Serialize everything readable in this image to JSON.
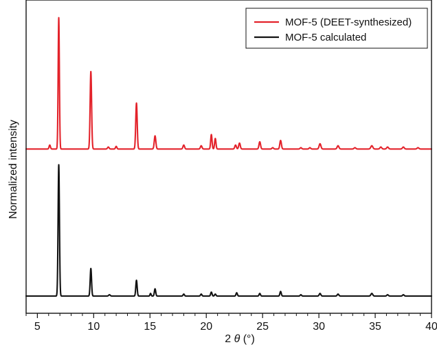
{
  "chart_data": {
    "type": "line",
    "title": "",
    "xlabel": {
      "prefix": "2",
      "symbol": "θ",
      "unit": "(°)"
    },
    "ylabel": "Normalized intensity",
    "xlim": [
      4,
      40
    ],
    "ylim": [
      0,
      2.15
    ],
    "xticks": [
      5,
      10,
      15,
      20,
      25,
      30,
      35,
      40
    ],
    "grid": false,
    "legend_position": "top-right",
    "series": [
      {
        "name": "MOF-5 (DEET-synthesized)",
        "color": "#e3222a",
        "offset": 1.12,
        "baseline": 0.0,
        "peaks": [
          {
            "x": 6.1,
            "y": 0.03,
            "w": 0.06
          },
          {
            "x": 6.9,
            "y": 1.0,
            "w": 0.055
          },
          {
            "x": 9.75,
            "y": 0.59,
            "w": 0.065
          },
          {
            "x": 11.3,
            "y": 0.015,
            "w": 0.07
          },
          {
            "x": 12.0,
            "y": 0.02,
            "w": 0.06
          },
          {
            "x": 13.8,
            "y": 0.35,
            "w": 0.065
          },
          {
            "x": 15.45,
            "y": 0.1,
            "w": 0.07
          },
          {
            "x": 18.0,
            "y": 0.03,
            "w": 0.07
          },
          {
            "x": 19.55,
            "y": 0.025,
            "w": 0.07
          },
          {
            "x": 20.45,
            "y": 0.11,
            "w": 0.06
          },
          {
            "x": 20.8,
            "y": 0.08,
            "w": 0.06
          },
          {
            "x": 22.6,
            "y": 0.03,
            "w": 0.07
          },
          {
            "x": 22.95,
            "y": 0.045,
            "w": 0.07
          },
          {
            "x": 24.75,
            "y": 0.055,
            "w": 0.07
          },
          {
            "x": 25.9,
            "y": 0.01,
            "w": 0.07
          },
          {
            "x": 26.6,
            "y": 0.065,
            "w": 0.07
          },
          {
            "x": 28.4,
            "y": 0.01,
            "w": 0.07
          },
          {
            "x": 29.2,
            "y": 0.01,
            "w": 0.07
          },
          {
            "x": 30.1,
            "y": 0.04,
            "w": 0.08
          },
          {
            "x": 31.7,
            "y": 0.025,
            "w": 0.08
          },
          {
            "x": 33.2,
            "y": 0.01,
            "w": 0.08
          },
          {
            "x": 34.7,
            "y": 0.025,
            "w": 0.09
          },
          {
            "x": 35.5,
            "y": 0.015,
            "w": 0.08
          },
          {
            "x": 36.1,
            "y": 0.015,
            "w": 0.08
          },
          {
            "x": 37.5,
            "y": 0.015,
            "w": 0.08
          },
          {
            "x": 38.8,
            "y": 0.01,
            "w": 0.08
          }
        ]
      },
      {
        "name": "MOF-5 calculated",
        "color": "#111111",
        "offset": 0.0,
        "baseline": 0.0,
        "peaks": [
          {
            "x": 6.9,
            "y": 1.0,
            "w": 0.06
          },
          {
            "x": 9.75,
            "y": 0.21,
            "w": 0.06
          },
          {
            "x": 11.4,
            "y": 0.01,
            "w": 0.07
          },
          {
            "x": 13.8,
            "y": 0.12,
            "w": 0.06
          },
          {
            "x": 15.45,
            "y": 0.055,
            "w": 0.06
          },
          {
            "x": 15.05,
            "y": 0.02,
            "w": 0.05
          },
          {
            "x": 18.0,
            "y": 0.015,
            "w": 0.06
          },
          {
            "x": 19.55,
            "y": 0.015,
            "w": 0.06
          },
          {
            "x": 20.45,
            "y": 0.03,
            "w": 0.06
          },
          {
            "x": 20.8,
            "y": 0.015,
            "w": 0.06
          },
          {
            "x": 22.7,
            "y": 0.025,
            "w": 0.06
          },
          {
            "x": 24.75,
            "y": 0.02,
            "w": 0.06
          },
          {
            "x": 26.6,
            "y": 0.035,
            "w": 0.06
          },
          {
            "x": 28.4,
            "y": 0.01,
            "w": 0.06
          },
          {
            "x": 30.1,
            "y": 0.02,
            "w": 0.07
          },
          {
            "x": 31.7,
            "y": 0.015,
            "w": 0.07
          },
          {
            "x": 34.7,
            "y": 0.02,
            "w": 0.08
          },
          {
            "x": 36.1,
            "y": 0.01,
            "w": 0.07
          },
          {
            "x": 37.5,
            "y": 0.01,
            "w": 0.07
          }
        ]
      }
    ]
  }
}
